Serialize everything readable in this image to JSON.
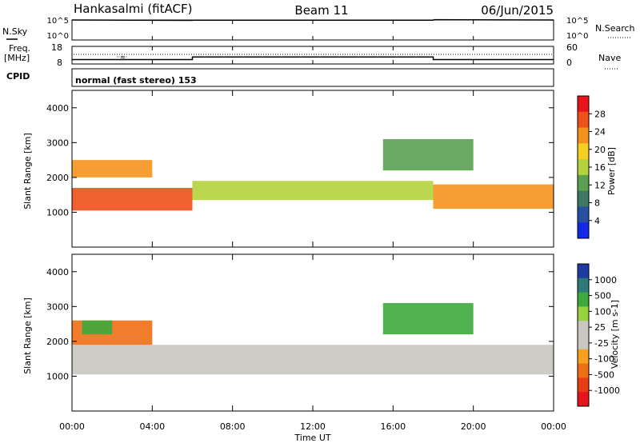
{
  "header": {
    "station": "Hankasalmi (fitACF)",
    "beam": "Beam 11",
    "date": "06/Jun/2015"
  },
  "nsky_panel": {
    "left_label": "N.Sky",
    "left_ticks": [
      "10^5",
      "10^0"
    ],
    "right_label": "N.Search",
    "right_ticks": [
      "10^5",
      "10^0"
    ]
  },
  "freq_panel": {
    "left_label_1": "Freq.",
    "left_label_2": "[MHz]",
    "left_ticks": [
      "18",
      "8"
    ],
    "right_label": "Nave",
    "right_ticks": [
      "60",
      "0"
    ],
    "cpid_label": "CPID",
    "mode_text": "normal (fast stereo) 153"
  },
  "power_panel": {
    "ylabel": "Slant Range [km]",
    "colorbar_label": "Power [dB]",
    "colorbar_ticks": [
      "28",
      "24",
      "20",
      "16",
      "12",
      "8",
      "4"
    ],
    "colorbar_colors": [
      "#e8141c",
      "#f0501a",
      "#f5921e",
      "#f5d020",
      "#b4d23c",
      "#5aa050",
      "#3c7864",
      "#2850a0",
      "#1428e6"
    ]
  },
  "velocity_panel": {
    "ylabel": "Slant Range [km]",
    "colorbar_label": "Velocity [m s-1]",
    "colorbar_ticks": [
      "1000",
      "500",
      "100",
      "25",
      "-25",
      "-100",
      "-500",
      "-1000"
    ],
    "colorbar_colors": [
      "#1e3ca0",
      "#2d7a7a",
      "#3caa3c",
      "#96d23c",
      "#c8c8c0",
      "#c8c8c0",
      "#f5a01e",
      "#f06e14",
      "#e83c14",
      "#e8141c"
    ]
  },
  "xaxis": {
    "label": "Time UT",
    "ticks": [
      "00:00",
      "04:00",
      "08:00",
      "12:00",
      "16:00",
      "20:00",
      "00:00"
    ]
  },
  "chart_data": [
    {
      "type": "line",
      "title": "N.Sky / N.Search",
      "x": [
        0,
        6,
        6.05,
        18,
        18.05,
        24
      ],
      "series": [
        {
          "values": [
            100000,
            80000,
            90000,
            90000,
            120000,
            100000
          ]
        }
      ],
      "ylim": [
        "10^0",
        "10^5"
      ],
      "xlabel": "Time UT",
      "log_scale": true
    },
    {
      "type": "line",
      "title": "Freq. / Nave",
      "x": [
        0,
        6,
        6,
        18,
        18,
        24
      ],
      "series": [
        {
          "name": "Freq. [MHz]",
          "values": [
            10.5,
            10.5,
            12,
            12,
            10.5,
            10.5
          ]
        },
        {
          "name": "Nave",
          "values": [
            40,
            40,
            40,
            40,
            40,
            40
          ]
        }
      ],
      "ylim": [
        8,
        18
      ]
    },
    {
      "type": "heatmap",
      "title": "Power [dB]",
      "x_range": [
        0,
        24
      ],
      "ylim": [
        0,
        4500
      ],
      "yticks": [
        1000,
        2000,
        3000,
        4000
      ],
      "ylabel": "Slant Range [km]",
      "colorbar_range": [
        0,
        30
      ],
      "colorbar_ticks": [
        4,
        8,
        12,
        16,
        20,
        24,
        28
      ],
      "bands": [
        {
          "x_start": 0,
          "x_end": 6,
          "range_km": [
            1050,
            1700
          ],
          "power_db": 26
        },
        {
          "x_start": 0,
          "x_end": 4,
          "range_km": [
            2000,
            2500
          ],
          "power_db": 22
        },
        {
          "x_start": 6,
          "x_end": 18,
          "range_km": [
            1350,
            1900
          ],
          "power_db": 14
        },
        {
          "x_start": 18,
          "x_end": 24,
          "range_km": [
            1100,
            1800
          ],
          "power_db": 22
        },
        {
          "x_start": 15.5,
          "x_end": 20,
          "range_km": [
            2200,
            3100
          ],
          "power_db": 12
        }
      ]
    },
    {
      "type": "heatmap",
      "title": "Velocity [m s-1]",
      "x_range": [
        0,
        24
      ],
      "ylim": [
        0,
        4500
      ],
      "yticks": [
        1000,
        2000,
        3000,
        4000
      ],
      "ylabel": "Slant Range [km]",
      "colorbar_ticks": [
        1000,
        500,
        100,
        25,
        -25,
        -100,
        -500,
        -1000
      ],
      "bands": [
        {
          "x_start": 0,
          "x_end": 24,
          "range_km": [
            1050,
            1900
          ],
          "velocity_ms": 0
        },
        {
          "x_start": 0,
          "x_end": 4,
          "range_km": [
            1900,
            2600
          ],
          "velocity_ms": -300
        },
        {
          "x_start": 0.5,
          "x_end": 2,
          "range_km": [
            2200,
            2600
          ],
          "velocity_ms": 300
        },
        {
          "x_start": 15.5,
          "x_end": 20,
          "range_km": [
            2200,
            3100
          ],
          "velocity_ms": 100
        }
      ]
    }
  ]
}
